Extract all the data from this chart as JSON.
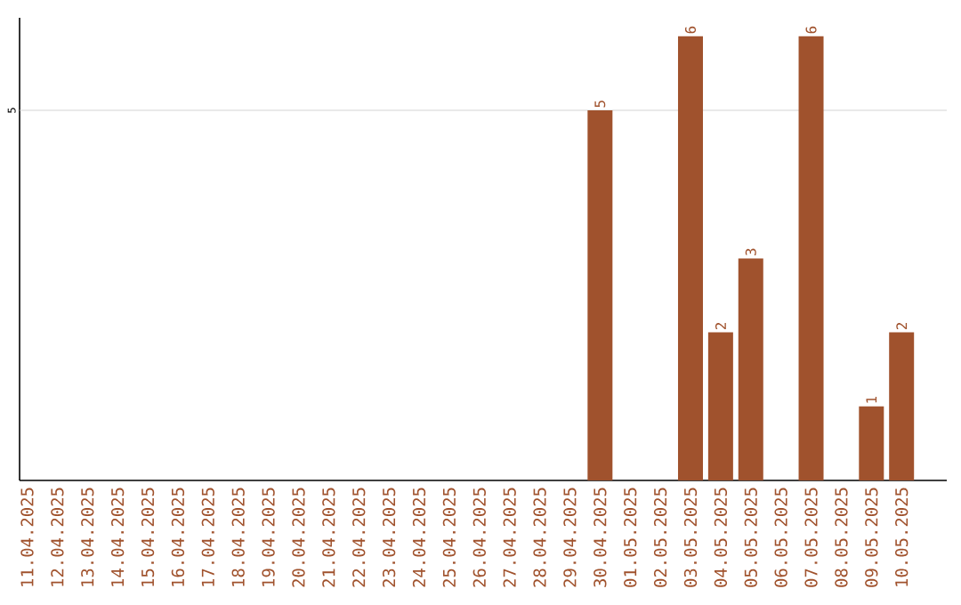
{
  "chart_data": {
    "type": "bar",
    "categories": [
      "11.04.2025",
      "12.04.2025",
      "13.04.2025",
      "14.04.2025",
      "15.04.2025",
      "16.04.2025",
      "17.04.2025",
      "18.04.2025",
      "19.04.2025",
      "20.04.2025",
      "21.04.2025",
      "22.04.2025",
      "23.04.2025",
      "24.04.2025",
      "25.04.2025",
      "26.04.2025",
      "27.04.2025",
      "28.04.2025",
      "29.04.2025",
      "30.04.2025",
      "01.05.2025",
      "02.05.2025",
      "03.05.2025",
      "04.05.2025",
      "05.05.2025",
      "06.05.2025",
      "07.05.2025",
      "08.05.2025",
      "09.05.2025",
      "10.05.2025"
    ],
    "values": [
      null,
      null,
      null,
      null,
      null,
      null,
      null,
      null,
      null,
      null,
      null,
      null,
      null,
      null,
      null,
      null,
      null,
      null,
      null,
      5,
      null,
      null,
      6,
      2,
      3,
      null,
      6,
      null,
      1,
      2
    ],
    "data_labels": true,
    "color": "#a0522d",
    "ylim": [
      0,
      6.25
    ],
    "ref_lines": [
      {
        "axis": "y",
        "value": 5,
        "label": "5",
        "color": "#c8c8c8"
      }
    ]
  }
}
